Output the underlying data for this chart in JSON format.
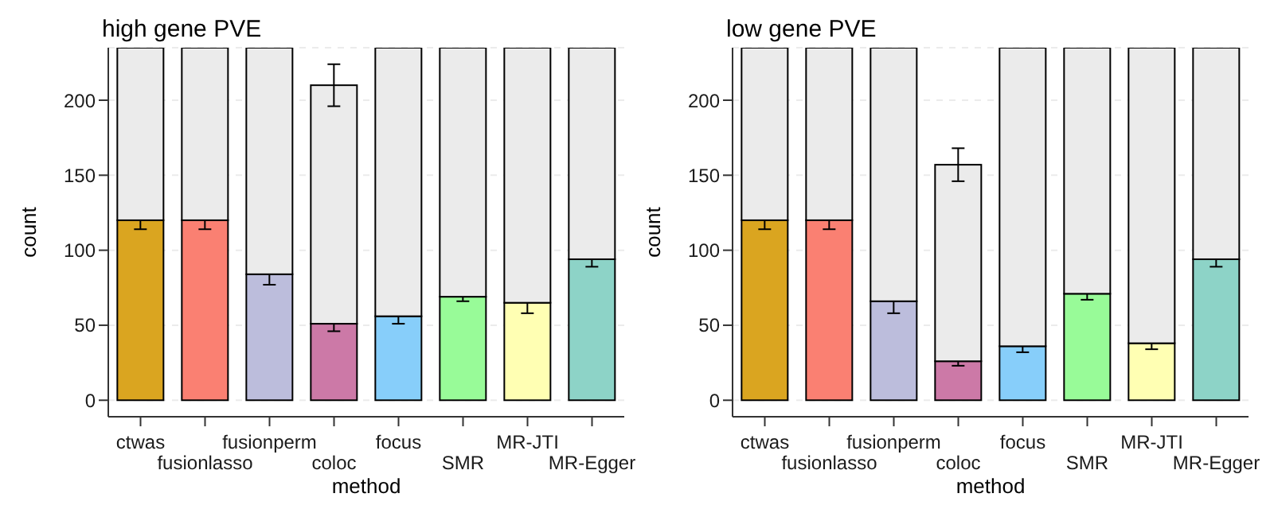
{
  "chart_data": [
    {
      "type": "bar",
      "title": "high gene PVE",
      "xlabel": "method",
      "ylabel": "count",
      "categories": [
        "ctwas",
        "fusionlasso",
        "fusionperm",
        "coloc",
        "focus",
        "SMR",
        "MR-JTI",
        "MR-Egger"
      ],
      "stacked": true,
      "ylim": [
        -11,
        235
      ],
      "yticks": [
        0,
        50,
        100,
        150,
        200
      ],
      "grid": "y",
      "series": [
        {
          "colors": [
            "#daa520",
            "#fa8072",
            "#bcbddc",
            "#cc79a7",
            "#87cefa",
            "#98fb98",
            "#ffffb3",
            "#8dd3c7"
          ],
          "values": [
            120,
            120,
            84,
            51,
            56,
            69,
            65,
            94
          ],
          "errors": [
            6,
            6,
            7,
            5,
            5,
            3,
            7,
            5
          ]
        },
        {
          "color": "#ebebeb",
          "values": [
            115,
            115,
            151,
            159,
            179,
            166,
            170,
            141
          ],
          "errors": [
            null,
            null,
            null,
            14,
            null,
            null,
            null,
            null
          ]
        }
      ]
    },
    {
      "type": "bar",
      "title": "low gene PVE",
      "xlabel": "method",
      "ylabel": "count",
      "categories": [
        "ctwas",
        "fusionlasso",
        "fusionperm",
        "coloc",
        "focus",
        "SMR",
        "MR-JTI",
        "MR-Egger"
      ],
      "stacked": true,
      "ylim": [
        -11,
        235
      ],
      "yticks": [
        0,
        50,
        100,
        150,
        200
      ],
      "grid": "y",
      "series": [
        {
          "colors": [
            "#daa520",
            "#fa8072",
            "#bcbddc",
            "#cc79a7",
            "#87cefa",
            "#98fb98",
            "#ffffb3",
            "#8dd3c7"
          ],
          "values": [
            120,
            120,
            66,
            26,
            36,
            71,
            38,
            94
          ],
          "errors": [
            6,
            6,
            8,
            3,
            4,
            4,
            4,
            5
          ]
        },
        {
          "color": "#ebebeb",
          "values": [
            115,
            115,
            169,
            131,
            199,
            164,
            197,
            141
          ],
          "errors": [
            null,
            null,
            null,
            11,
            null,
            null,
            null,
            null
          ]
        }
      ]
    }
  ]
}
